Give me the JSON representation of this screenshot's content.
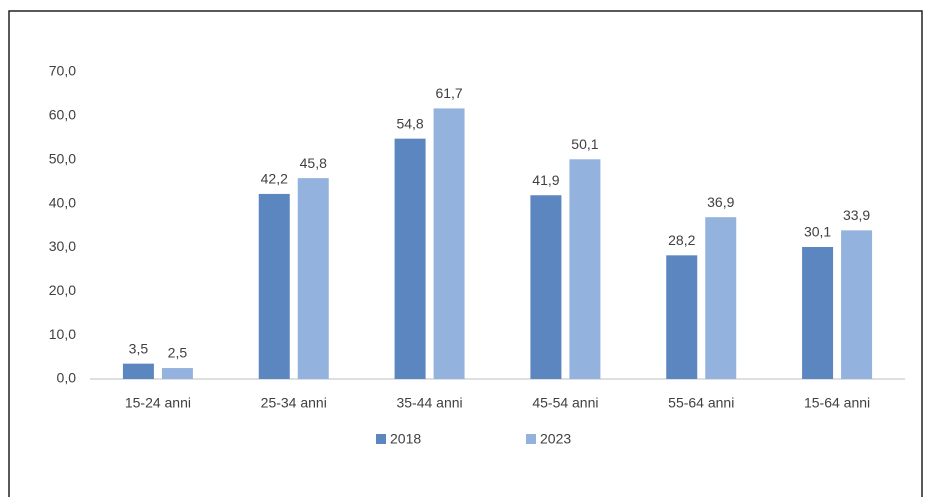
{
  "chart_data": {
    "type": "bar",
    "categories": [
      "15-24 anni",
      "25-34 anni",
      "35-44 anni",
      "45-54 anni",
      "55-64 anni",
      "15-64 anni"
    ],
    "series": [
      {
        "name": "2018",
        "color": "#5b86c0",
        "values": [
          3.5,
          42.2,
          54.8,
          41.9,
          28.2,
          30.1
        ],
        "value_labels": [
          "3,5",
          "42,2",
          "54,8",
          "41,9",
          "28,2",
          "30,1"
        ]
      },
      {
        "name": "2023",
        "color": "#93b3de",
        "values": [
          2.5,
          45.8,
          61.7,
          50.1,
          36.9,
          33.9
        ],
        "value_labels": [
          "2,5",
          "45,8",
          "61,7",
          "50,1",
          "36,9",
          "33,9"
        ]
      }
    ],
    "ylim": [
      0,
      70
    ],
    "yticks": [
      {
        "value": 0,
        "label": "0,0"
      },
      {
        "value": 10,
        "label": "10,0"
      },
      {
        "value": 20,
        "label": "20,0"
      },
      {
        "value": 30,
        "label": "30,0"
      },
      {
        "value": 40,
        "label": "40,0"
      },
      {
        "value": 50,
        "label": "50,0"
      },
      {
        "value": 60,
        "label": "60,0"
      },
      {
        "value": 70,
        "label": "70,0"
      }
    ],
    "grid": false,
    "legend": "bottom"
  }
}
